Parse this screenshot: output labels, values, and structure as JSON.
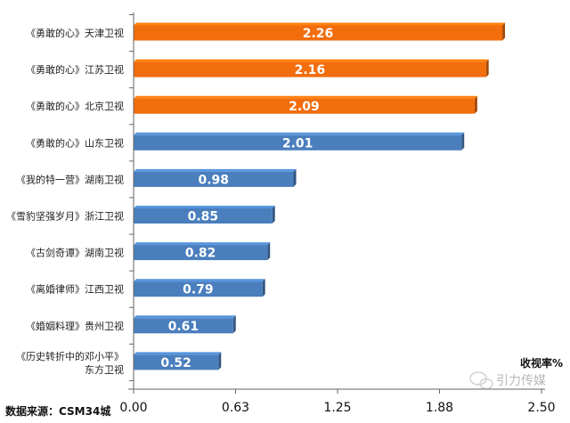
{
  "chart_data": {
    "type": "bar",
    "orientation": "horizontal",
    "categories": [
      "《勇敢的心》天津卫视",
      "《勇敢的心》江苏卫视",
      "《勇敢的心》北京卫视",
      "《勇敢的心》山东卫视",
      "《我的特一营》湖南卫视",
      "《雪豹坚强岁月》浙江卫视",
      "《古剑奇谭》湖南卫视",
      "《离婚律师》江西卫视",
      "《婚姻料理》贵州卫视",
      "《历史转折中的邓小平》东方卫视"
    ],
    "values": [
      2.26,
      2.16,
      2.09,
      2.01,
      0.98,
      0.85,
      0.82,
      0.79,
      0.61,
      0.52
    ],
    "bar_colors": [
      "#f26d0c",
      "#f26d0c",
      "#f26d0c",
      "#4a7ebd",
      "#4a7ebd",
      "#4a7ebd",
      "#4a7ebd",
      "#4a7ebd",
      "#4a7ebd",
      "#4a7ebd"
    ],
    "xlim": [
      0,
      2.5
    ],
    "xticks": [
      "0.00",
      "0.63",
      "1.25",
      "1.88",
      "2.50"
    ],
    "xlabel": "收视率%",
    "source": "数据来源：CSM34城",
    "watermark": "引力传媒",
    "legend": null,
    "grid": false
  }
}
